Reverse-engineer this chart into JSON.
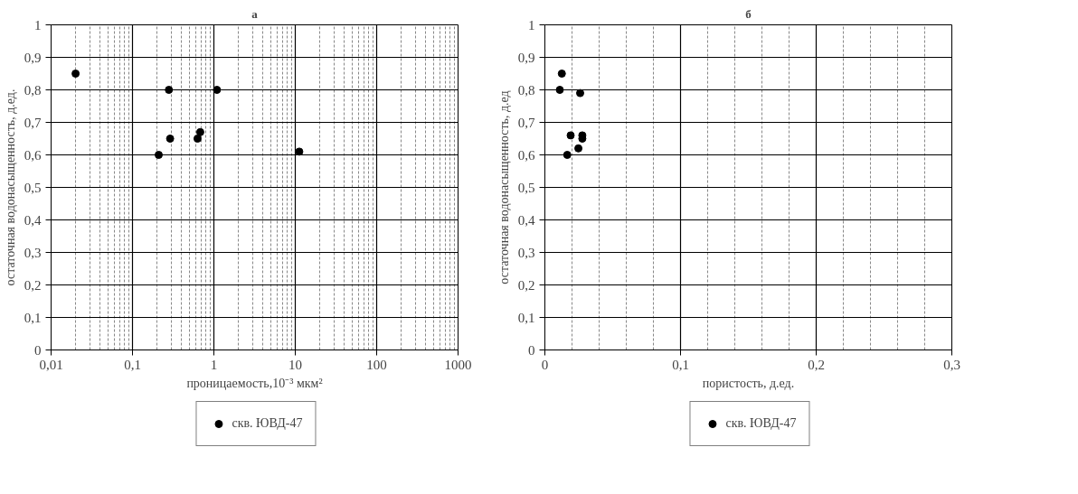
{
  "chart_data": [
    {
      "type": "scatter",
      "title": "а",
      "xlabel": "проницаемость,10⁻³ мкм²",
      "ylabel": "остаточная водонасыщенность, д.ед.",
      "log": "x",
      "grid": true,
      "legend": "bottom",
      "marker": "circle",
      "xlim": [
        0.01,
        1000
      ],
      "xticks": [
        {
          "value": 0.01,
          "label": "0,01"
        },
        {
          "value": 0.1,
          "label": "0,1"
        },
        1,
        10,
        100,
        1000
      ],
      "ylim": [
        0,
        1
      ],
      "yticks": [
        {
          "value": 0,
          "label": "0"
        },
        {
          "value": 0.1,
          "label": "0,1"
        },
        {
          "value": 0.2,
          "label": "0,2"
        },
        {
          "value": 0.3,
          "label": "0,3"
        },
        {
          "value": 0.4,
          "label": "0,4"
        },
        {
          "value": 0.5,
          "label": "0,5"
        },
        {
          "value": 0.6,
          "label": "0,6"
        },
        {
          "value": 0.7,
          "label": "0,7"
        },
        {
          "value": 0.8,
          "label": "0,8"
        },
        {
          "value": 0.9,
          "label": "0,9"
        },
        {
          "value": 1,
          "label": "1"
        }
      ],
      "series": [
        {
          "name": "скв. ЮВД-47",
          "color": "#000000",
          "x": [
            0.02,
            0.28,
            1.09,
            0.29,
            0.21,
            0.63,
            0.68,
            11.2
          ],
          "values": [
            0.85,
            0.8,
            0.8,
            0.65,
            0.6,
            0.65,
            0.67,
            0.61
          ]
        }
      ]
    },
    {
      "type": "scatter",
      "title": "б",
      "xlabel": "пористость, д.ед.",
      "ylabel": "остаточная водонасыщенность, д.ед",
      "grid": true,
      "legend": "bottom",
      "marker": "circle",
      "xlim": [
        0,
        0.3
      ],
      "xticks": [
        0,
        {
          "value": 0.1,
          "label": "0,1"
        },
        {
          "value": 0.2,
          "label": "0,2"
        },
        {
          "value": 0.3,
          "label": "0,3"
        }
      ],
      "ylim": [
        0,
        1
      ],
      "yticks": [
        {
          "value": 0,
          "label": "0"
        },
        {
          "value": 0.1,
          "label": "0,1"
        },
        {
          "value": 0.2,
          "label": "0,2"
        },
        {
          "value": 0.3,
          "label": "0,3"
        },
        {
          "value": 0.4,
          "label": "0,4"
        },
        {
          "value": 0.5,
          "label": "0,5"
        },
        {
          "value": 0.6,
          "label": "0,6"
        },
        {
          "value": 0.7,
          "label": "0,7"
        },
        {
          "value": 0.8,
          "label": "0,8"
        },
        {
          "value": 0.9,
          "label": "0,9"
        },
        {
          "value": 1,
          "label": "1"
        }
      ],
      "series": [
        {
          "name": "скв. ЮВД-47",
          "color": "#000000",
          "x": [
            0.0125,
            0.011,
            0.026,
            0.019,
            0.0276,
            0.0276,
            0.0247,
            0.0165
          ],
          "values": [
            0.85,
            0.8,
            0.79,
            0.66,
            0.66,
            0.65,
            0.62,
            0.6
          ]
        }
      ]
    }
  ]
}
